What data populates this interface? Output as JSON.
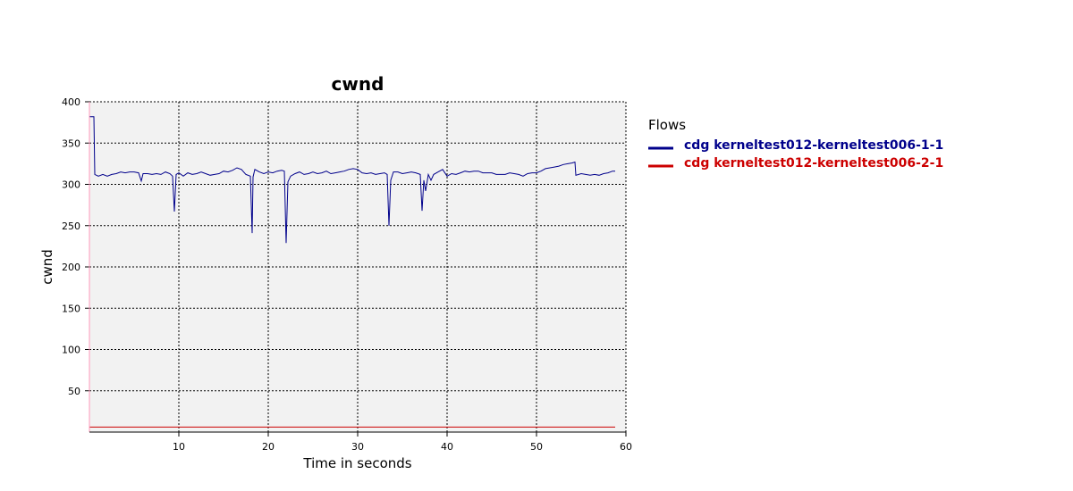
{
  "chart_data": {
    "type": "line",
    "title": "cwnd",
    "xlabel": "Time in seconds",
    "ylabel": "cwnd",
    "xlim": [
      0,
      60
    ],
    "ylim": [
      0,
      400
    ],
    "xticks": [
      10,
      20,
      30,
      40,
      50,
      60
    ],
    "yticks": [
      50,
      100,
      150,
      200,
      250,
      300,
      350,
      400
    ],
    "grid": true,
    "legend_title": "Flows",
    "legend_position": "right",
    "series": [
      {
        "name": "cdg kerneltest012-kerneltest006-1-1",
        "color": "#00008b",
        "points": [
          [
            0,
            382
          ],
          [
            0.5,
            382
          ],
          [
            0.6,
            312
          ],
          [
            1.0,
            310
          ],
          [
            1.5,
            312
          ],
          [
            2.0,
            310
          ],
          [
            2.5,
            312
          ],
          [
            3.0,
            313
          ],
          [
            3.5,
            315
          ],
          [
            4.0,
            314
          ],
          [
            4.5,
            315
          ],
          [
            5.0,
            315
          ],
          [
            5.5,
            314
          ],
          [
            5.8,
            304
          ],
          [
            6.0,
            313
          ],
          [
            6.5,
            313
          ],
          [
            7.0,
            312
          ],
          [
            7.5,
            313
          ],
          [
            8.0,
            312
          ],
          [
            8.5,
            315
          ],
          [
            9.0,
            313
          ],
          [
            9.3,
            310
          ],
          [
            9.5,
            267
          ],
          [
            9.7,
            312
          ],
          [
            10.0,
            314
          ],
          [
            10.5,
            310
          ],
          [
            11.0,
            314
          ],
          [
            11.5,
            312
          ],
          [
            12.0,
            313
          ],
          [
            12.5,
            315
          ],
          [
            13.0,
            313
          ],
          [
            13.5,
            311
          ],
          [
            14.0,
            312
          ],
          [
            14.5,
            313
          ],
          [
            15.0,
            316
          ],
          [
            15.5,
            315
          ],
          [
            16.0,
            317
          ],
          [
            16.5,
            320
          ],
          [
            17.0,
            318
          ],
          [
            17.5,
            312
          ],
          [
            18.0,
            310
          ],
          [
            18.2,
            241
          ],
          [
            18.3,
            309
          ],
          [
            18.5,
            318
          ],
          [
            19.0,
            315
          ],
          [
            19.5,
            313
          ],
          [
            20.0,
            315
          ],
          [
            20.5,
            314
          ],
          [
            21.0,
            316
          ],
          [
            21.5,
            317
          ],
          [
            21.8,
            316
          ],
          [
            22.0,
            229
          ],
          [
            22.2,
            303
          ],
          [
            22.5,
            310
          ],
          [
            23.0,
            313
          ],
          [
            23.5,
            315
          ],
          [
            24.0,
            312
          ],
          [
            24.5,
            313
          ],
          [
            25.0,
            315
          ],
          [
            25.5,
            313
          ],
          [
            26.0,
            314
          ],
          [
            26.5,
            316
          ],
          [
            27.0,
            313
          ],
          [
            27.5,
            314
          ],
          [
            28.0,
            315
          ],
          [
            28.5,
            316
          ],
          [
            29.0,
            318
          ],
          [
            29.5,
            319
          ],
          [
            30.0,
            318
          ],
          [
            30.5,
            314
          ],
          [
            31.0,
            313
          ],
          [
            31.5,
            314
          ],
          [
            32.0,
            312
          ],
          [
            32.5,
            313
          ],
          [
            33.0,
            314
          ],
          [
            33.3,
            312
          ],
          [
            33.5,
            250
          ],
          [
            33.7,
            305
          ],
          [
            34.0,
            315
          ],
          [
            34.5,
            315
          ],
          [
            35.0,
            313
          ],
          [
            35.5,
            314
          ],
          [
            36.0,
            315
          ],
          [
            36.5,
            314
          ],
          [
            37.0,
            312
          ],
          [
            37.2,
            268
          ],
          [
            37.4,
            305
          ],
          [
            37.6,
            292
          ],
          [
            37.9,
            312
          ],
          [
            38.2,
            305
          ],
          [
            38.5,
            312
          ],
          [
            39.0,
            315
          ],
          [
            39.5,
            318
          ],
          [
            40.0,
            310
          ],
          [
            40.5,
            313
          ],
          [
            41.0,
            312
          ],
          [
            41.5,
            314
          ],
          [
            42.0,
            316
          ],
          [
            42.5,
            315
          ],
          [
            43.0,
            316
          ],
          [
            43.5,
            316
          ],
          [
            44.0,
            314
          ],
          [
            44.5,
            314
          ],
          [
            45.0,
            314
          ],
          [
            45.5,
            312
          ],
          [
            46.0,
            312
          ],
          [
            46.5,
            312
          ],
          [
            47.0,
            314
          ],
          [
            47.5,
            313
          ],
          [
            48.0,
            312
          ],
          [
            48.5,
            310
          ],
          [
            49.0,
            313
          ],
          [
            49.5,
            314
          ],
          [
            50.0,
            314
          ],
          [
            50.5,
            316
          ],
          [
            51.0,
            319
          ],
          [
            51.5,
            320
          ],
          [
            52.0,
            321
          ],
          [
            52.5,
            322
          ],
          [
            53.0,
            324
          ],
          [
            53.5,
            325
          ],
          [
            54.0,
            326
          ],
          [
            54.3,
            327
          ],
          [
            54.4,
            311
          ],
          [
            55.0,
            313
          ],
          [
            55.5,
            312
          ],
          [
            56.0,
            311
          ],
          [
            56.5,
            312
          ],
          [
            57.0,
            311
          ],
          [
            57.5,
            313
          ],
          [
            58.0,
            314
          ],
          [
            58.5,
            316
          ],
          [
            58.8,
            316
          ]
        ]
      },
      {
        "name": "cdg kerneltest012-kerneltest006-2-1",
        "color": "#cc0000",
        "points": [
          [
            0,
            6
          ],
          [
            58.8,
            6
          ]
        ]
      }
    ]
  }
}
